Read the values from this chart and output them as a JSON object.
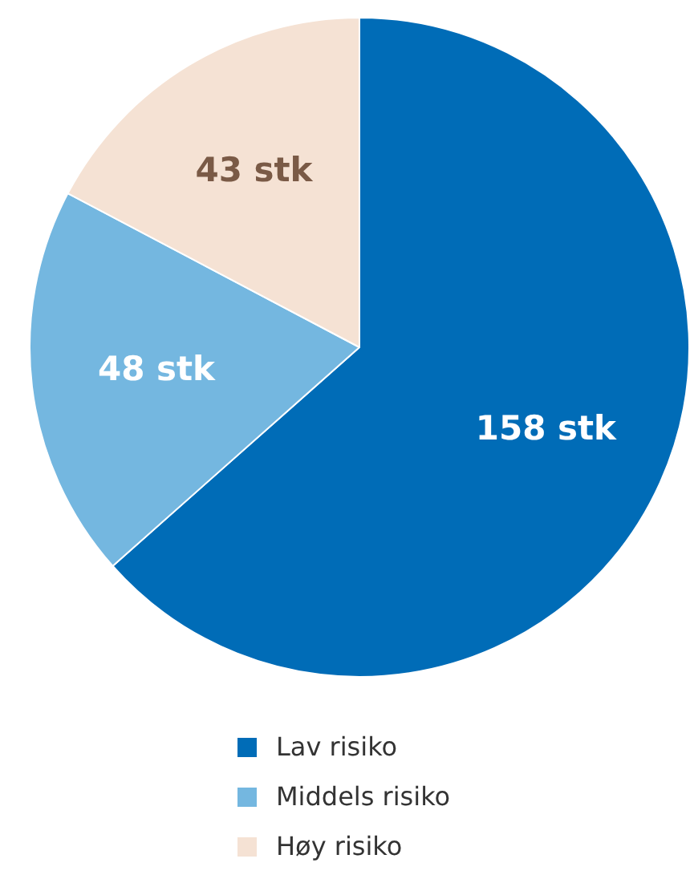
{
  "chart_data": {
    "type": "pie",
    "categories": [
      "Lav risiko",
      "Middels risiko",
      "Høy risiko"
    ],
    "values": [
      158,
      48,
      43
    ],
    "colors": [
      "#006cb7",
      "#74b7e0",
      "#f5e2d4"
    ],
    "value_labels": [
      "158 stk",
      "48 stk",
      "43 stk"
    ],
    "legend": "bottom",
    "marker": "square"
  }
}
